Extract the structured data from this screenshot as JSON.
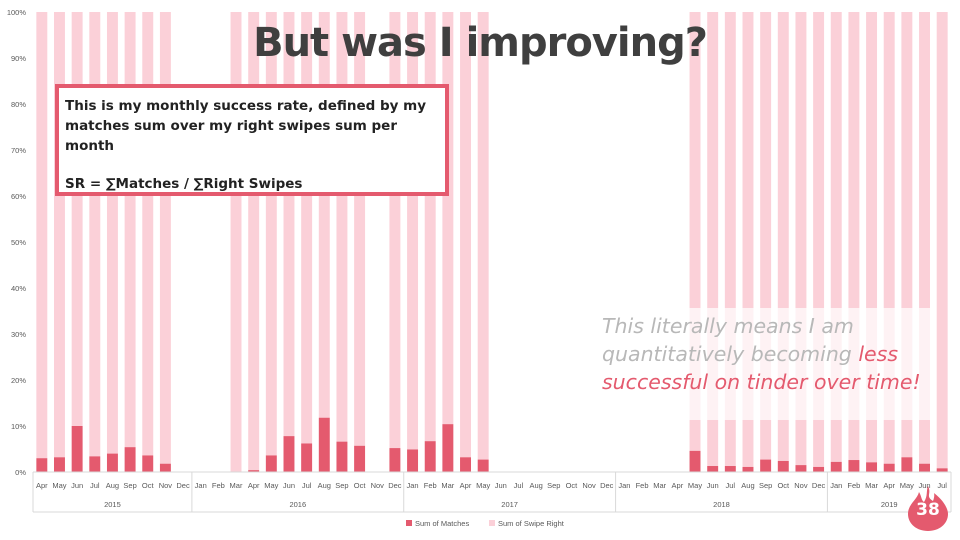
{
  "slide": {
    "title": "But was I improving?",
    "definition_line1": "This is my monthly success rate, defined by my",
    "definition_line2": "matches sum over my right swipes sum per month",
    "formula": "SR = ∑Matches /  ∑Right Swipes",
    "note_part1": "This literally means I am quantitatively becoming ",
    "note_part2": "less successful on tinder over time!",
    "page_number": "38",
    "accent_color": "#e45a6e",
    "badge_icon": "flame-icon"
  },
  "chart_data": {
    "type": "bar",
    "stacking": "100% stacked",
    "title": "",
    "xlabel": "",
    "ylabel": "",
    "ylim": [
      0,
      1
    ],
    "y_ticks": [
      "0%",
      "10%",
      "20%",
      "30%",
      "40%",
      "50%",
      "60%",
      "70%",
      "80%",
      "90%",
      "100%"
    ],
    "grid": false,
    "legend_position": "bottom",
    "groups": [
      {
        "label": "2015",
        "months": [
          "Apr",
          "May",
          "Jun",
          "Jul",
          "Aug",
          "Sep",
          "Oct",
          "Nov",
          "Dec"
        ]
      },
      {
        "label": "2016",
        "months": [
          "Jan",
          "Feb",
          "Mar",
          "Apr",
          "May",
          "Jun",
          "Jul",
          "Aug",
          "Sep",
          "Oct",
          "Nov",
          "Dec"
        ]
      },
      {
        "label": "2017",
        "months": [
          "Jan",
          "Feb",
          "Mar",
          "Apr",
          "May",
          "Jun",
          "Jul",
          "Aug",
          "Sep",
          "Oct",
          "Nov",
          "Dec"
        ]
      },
      {
        "label": "2018",
        "months": [
          "Jan",
          "Feb",
          "Mar",
          "Apr",
          "May",
          "Jun",
          "Jul",
          "Aug",
          "Sep",
          "Oct",
          "Nov",
          "Dec"
        ]
      },
      {
        "label": "2019",
        "months": [
          "Jan",
          "Feb",
          "Mar",
          "Apr",
          "May",
          "Jun",
          "Jul"
        ]
      }
    ],
    "series": [
      {
        "name": "Sum of Matches",
        "color": "#e45a6e",
        "values": [
          0.03,
          0.032,
          0.1,
          0.034,
          0.04,
          0.054,
          0.036,
          0.018,
          null,
          null,
          null,
          0.0,
          0.004,
          0.036,
          0.078,
          0.062,
          0.118,
          0.066,
          0.057,
          null,
          0.052,
          0.049,
          0.067,
          0.104,
          0.032,
          0.027,
          null,
          null,
          null,
          null,
          null,
          null,
          null,
          null,
          null,
          null,
          null,
          0.046,
          0.013,
          0.013,
          0.011,
          0.027,
          0.024,
          0.015,
          0.011,
          0.022,
          0.026,
          0.021,
          0.018,
          0.032,
          0.018,
          0.008
        ]
      },
      {
        "name": "Sum of Swipe Right",
        "color": "#fbd0d8",
        "values": [
          0.97,
          0.968,
          0.9,
          0.966,
          0.96,
          0.946,
          0.964,
          0.982,
          null,
          null,
          null,
          1.0,
          0.996,
          0.964,
          0.922,
          0.938,
          0.882,
          0.934,
          0.943,
          null,
          0.948,
          0.951,
          0.933,
          0.896,
          0.968,
          0.973,
          null,
          null,
          null,
          null,
          null,
          null,
          null,
          null,
          null,
          null,
          null,
          0.954,
          0.987,
          0.987,
          0.989,
          0.973,
          0.976,
          0.985,
          0.989,
          0.978,
          0.974,
          0.979,
          0.982,
          0.968,
          0.982,
          0.992
        ]
      }
    ]
  }
}
